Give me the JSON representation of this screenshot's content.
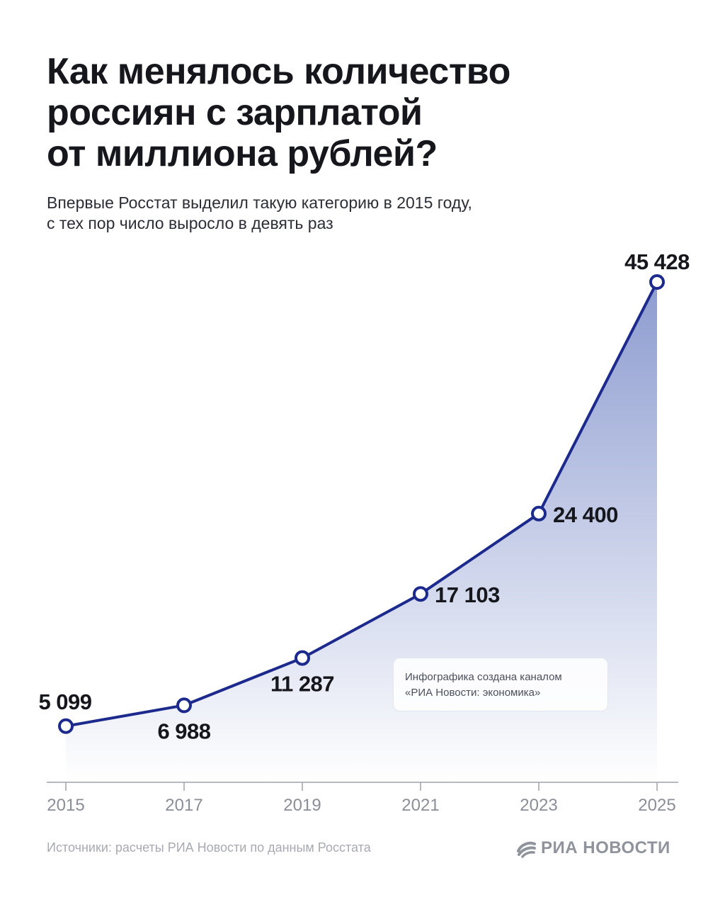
{
  "header": {
    "title": "Как менялось количество\nроссиян с зарплатой\nот миллиона рублей?",
    "subtitle": "Впервые Росстат выделил такую категорию в 2015 году,\nс тех пор число выросло в девять раз"
  },
  "chart_data": {
    "type": "area",
    "title": "Как менялось количество россиян с зарплатой от миллиона рублей?",
    "xlabel": "",
    "ylabel": "",
    "grid": false,
    "legend": "none",
    "x": [
      2015,
      2017,
      2019,
      2021,
      2023,
      2025
    ],
    "tick_labels": [
      "2015",
      "2017",
      "2019",
      "2021",
      "2023",
      "2025"
    ],
    "series": [
      {
        "values": [
          5099,
          6988,
          11287,
          17103,
          24400,
          45428
        ],
        "labels": [
          "5 099",
          "6 988",
          "11 287",
          "17 103",
          "24 400",
          "45 428"
        ]
      }
    ],
    "xlim": [
      2015,
      2025
    ],
    "ylim": [
      0,
      45428
    ],
    "colors": {
      "line": "#1b2a8c",
      "fill_top": "#8d9cd0",
      "fill_bottom": "#ffffff",
      "axis": "#9ea2ab"
    }
  },
  "watermark": {
    "text": "Инфографика создана каналом\n«РИА Новости: экономика»"
  },
  "footer": {
    "source": "Источники: расчеты РИА Новости по данным Росстата",
    "logo_text": "РИА НОВОСТИ",
    "logo_icon": "ria-novosti-globe-icon"
  }
}
